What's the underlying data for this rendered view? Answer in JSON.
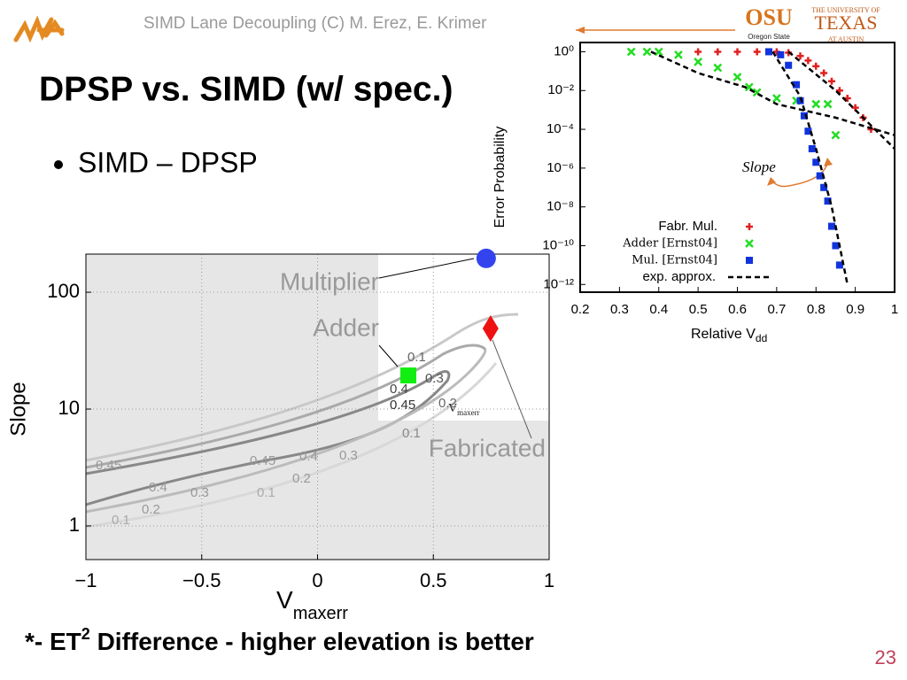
{
  "header": {
    "text": "SIMD Lane Decoupling (C) M. Erez, E. Krimer",
    "logo_osu": "OSU",
    "logo_osu_sub": "Oregon State",
    "logo_ut_top": "THE UNIVERSITY OF",
    "logo_ut": "TEXAS",
    "logo_ut_bottom": "AT AUSTIN"
  },
  "title": "DPSP vs. SIMD (w/ spec.)",
  "bullet": "SIMD – DPSP",
  "footer": {
    "prefix": "*- ET",
    "sup": "2",
    "suffix": " Difference - higher elevation is better"
  },
  "page_number": "23",
  "chart_data": [
    {
      "type": "scatter",
      "ylabel": "Error Probability",
      "xlabel": "Relative V",
      "xlabel_sub": "dd",
      "annotation": "Slope",
      "xlim": [
        0.2,
        1
      ],
      "ylim": [
        4e-13,
        3
      ],
      "log_y": true,
      "grid": false,
      "legend": "lower left",
      "xticks": [
        0.2,
        0.3,
        0.4,
        0.5,
        0.6,
        0.7,
        0.8,
        0.9,
        1
      ],
      "yticks": [
        {
          "value": 1,
          "label": "10⁰"
        },
        {
          "value": 0.01,
          "label": "10⁻²"
        },
        {
          "value": 0.0001,
          "label": "10⁻⁴"
        },
        {
          "value": 1e-06,
          "label": "10⁻⁶"
        },
        {
          "value": 1e-08,
          "label": "10⁻⁸"
        },
        {
          "value": 1e-10,
          "label": "10⁻¹⁰"
        },
        {
          "value": 1e-12,
          "label": "10⁻¹²"
        }
      ],
      "series": [
        {
          "name": "Fabr. Mul.",
          "color": "#e02020",
          "marker": "plus",
          "x": [
            0.5,
            0.55,
            0.6,
            0.65,
            0.7,
            0.73,
            0.76,
            0.78,
            0.8,
            0.82,
            0.84,
            0.86,
            0.88,
            0.9,
            0.92,
            0.94
          ],
          "values": [
            1,
            1,
            1,
            1,
            1,
            0.9,
            0.6,
            0.35,
            0.18,
            0.08,
            0.03,
            0.01,
            0.004,
            0.0013,
            0.0004,
            0.0001
          ]
        },
        {
          "name": "Adder [Ernst04]",
          "color": "#22dd22",
          "marker": "x",
          "x": [
            0.33,
            0.37,
            0.4,
            0.45,
            0.5,
            0.55,
            0.6,
            0.63,
            0.65,
            0.7,
            0.75,
            0.8,
            0.83,
            0.85
          ],
          "values": [
            1,
            1,
            1,
            0.7,
            0.3,
            0.15,
            0.05,
            0.015,
            0.008,
            0.004,
            0.003,
            0.002,
            0.002,
            5e-05
          ]
        },
        {
          "name": "Mul. [Ernst04]",
          "color": "#1133dd",
          "marker": "square",
          "x": [
            0.68,
            0.71,
            0.73,
            0.75,
            0.76,
            0.77,
            0.78,
            0.79,
            0.8,
            0.81,
            0.82,
            0.83,
            0.84,
            0.85,
            0.86
          ],
          "values": [
            1,
            0.7,
            0.2,
            0.02,
            0.003,
            0.0005,
            8e-05,
            1e-05,
            2e-06,
            4e-07,
            1e-07,
            2e-08,
            1e-09,
            1e-10,
            1e-11
          ]
        },
        {
          "name": "exp. approx.",
          "color": "#000000",
          "marker": "none",
          "line": "dashed",
          "x": [
            0.38,
            0.5,
            0.62,
            0.7,
            0.85,
            1,
            null,
            0.69,
            0.76,
            0.8,
            0.84,
            0.88,
            null,
            0.73,
            0.85,
            0.95,
            1
          ],
          "values": [
            1,
            0.08,
            0.015,
            0.002,
            0.0004,
            5e-05,
            null,
            1,
            0.005,
            1e-05,
            1e-08,
            1e-12,
            null,
            1,
            0.01,
            0.0001,
            1e-05
          ]
        }
      ]
    },
    {
      "type": "scatter",
      "ylabel": "Slope",
      "xlabel": "V",
      "xlabel_sub": "maxerr",
      "annotation": "V",
      "annotation_sub": "maxerr",
      "contour_labels": [
        "0.1",
        "0.2",
        "0.3",
        "0.4",
        "0.45"
      ],
      "xlim": [
        -1,
        1
      ],
      "ylim": [
        0.515,
        212
      ],
      "log_y": true,
      "grid": true,
      "xticks": [
        {
          "value": -1,
          "label": "−1"
        },
        {
          "value": -0.5,
          "label": "−0.5"
        },
        0,
        0.5,
        1
      ],
      "yticks": [
        1,
        10,
        100
      ],
      "series": [
        {
          "name": "Multiplier",
          "color": "#3344ee",
          "marker": "circle",
          "x": [
            0.728
          ],
          "values": [
            195
          ]
        },
        {
          "name": "Adder",
          "color": "#11ee11",
          "marker": "square",
          "x": [
            0.392
          ],
          "values": [
            19.4
          ]
        },
        {
          "name": "Fabricated",
          "color": "#ee1111",
          "marker": "diamond",
          "x": [
            0.747
          ],
          "values": [
            49
          ]
        }
      ]
    }
  ]
}
